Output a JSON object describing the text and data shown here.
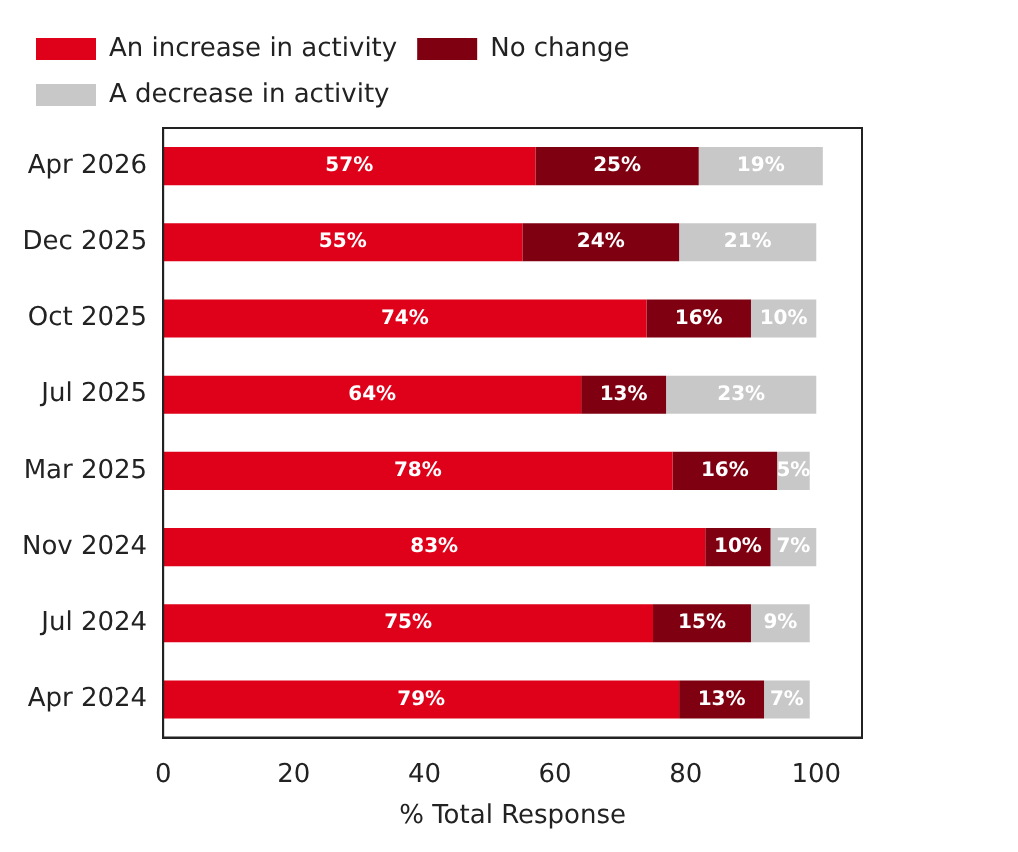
{
  "chart_data": {
    "type": "bar",
    "orientation": "horizontal",
    "stacked": true,
    "xlabel": "% Total Response",
    "categories": [
      "Apr 2026",
      "Dec 2025",
      "Oct 2025",
      "Jul 2025",
      "Mar 2025",
      "Nov 2024",
      "Jul 2024",
      "Apr 2024"
    ],
    "series": [
      {
        "name": "An increase in activity",
        "color": "#df0019",
        "values": [
          57,
          55,
          74,
          64,
          78,
          83,
          75,
          79
        ],
        "value_labels": [
          "57%",
          "55%",
          "74%",
          "64%",
          "78%",
          "83%",
          "75%",
          "79%"
        ]
      },
      {
        "name": "No change",
        "color": "#7f0010",
        "values": [
          25,
          24,
          16,
          13,
          16,
          10,
          15,
          13
        ],
        "value_labels": [
          "25%",
          "24%",
          "16%",
          "13%",
          "16%",
          "10%",
          "15%",
          "13%"
        ]
      },
      {
        "name": "A decrease in activity",
        "color": "#c8c8c8",
        "values": [
          19,
          21,
          10,
          23,
          5,
          7,
          9,
          7
        ],
        "value_labels": [
          "19%",
          "21%",
          "10%",
          "23%",
          "5%",
          "7%",
          "9%",
          "7%"
        ]
      }
    ],
    "xlim": [
      0,
      107
    ],
    "xticks": [
      0,
      20,
      40,
      60,
      80,
      100
    ],
    "grid": false,
    "legend": "top"
  }
}
